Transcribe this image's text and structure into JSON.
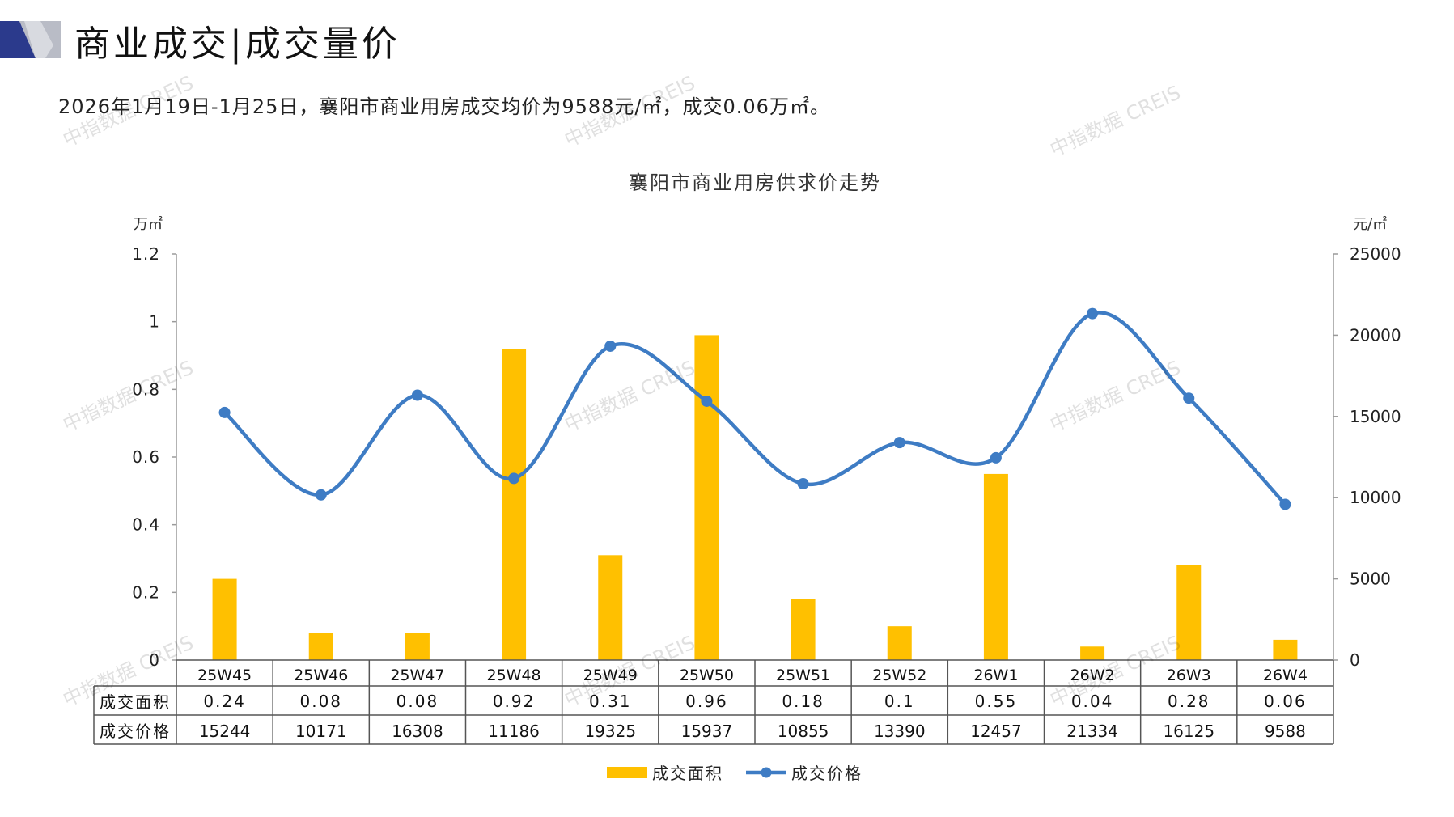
{
  "header": {
    "title": "商业成交|成交量价",
    "summary": "2026年1月19日-1月25日，襄阳市商业用房成交均价为9588元/㎡，成交0.06万㎡。"
  },
  "watermark_text": "中指数据 CREIS",
  "colors": {
    "bar": "#FFC000",
    "line": "#3E7CC4",
    "axis": "#9a9a9a",
    "logo_dark": "#2B3A8C",
    "logo_light": "#B9BCC6"
  },
  "chart_data": {
    "type": "bar+line",
    "title": "襄阳市商业用房供求价走势",
    "left_unit": "万㎡",
    "right_unit": "元/㎡",
    "categories": [
      "25W45",
      "25W46",
      "25W47",
      "25W48",
      "25W49",
      "25W50",
      "25W51",
      "25W52",
      "26W1",
      "26W2",
      "26W3",
      "26W4"
    ],
    "series": [
      {
        "name": "成交面积",
        "type": "bar",
        "axis": "left",
        "values": [
          0.24,
          0.08,
          0.08,
          0.92,
          0.31,
          0.96,
          0.18,
          0.1,
          0.55,
          0.04,
          0.28,
          0.06
        ],
        "labels": [
          "0.24",
          "0.08",
          "0.08",
          "0.92",
          "0.31",
          "0.96",
          "0.18",
          "0.1",
          "0.55",
          "0.04",
          "0.28",
          "0.06"
        ]
      },
      {
        "name": "成交价格",
        "type": "line",
        "axis": "right",
        "values": [
          15244,
          10171,
          16308,
          11186,
          19325,
          15937,
          10855,
          13390,
          12457,
          21334,
          16125,
          9588
        ],
        "labels": [
          "15244",
          "10171",
          "16308",
          "11186",
          "19325",
          "15937",
          "10855",
          "13390",
          "12457",
          "21334",
          "16125",
          "9588"
        ]
      }
    ],
    "left_axis": {
      "min": 0,
      "max": 1.2,
      "ticks": [
        "0",
        "0.2",
        "0.4",
        "0.6",
        "0.8",
        "1",
        "1.2"
      ]
    },
    "right_axis": {
      "min": 0,
      "max": 25000,
      "ticks": [
        "0",
        "5000",
        "10000",
        "15000",
        "20000",
        "25000"
      ]
    },
    "legend_position": "bottom",
    "data_table": true
  }
}
